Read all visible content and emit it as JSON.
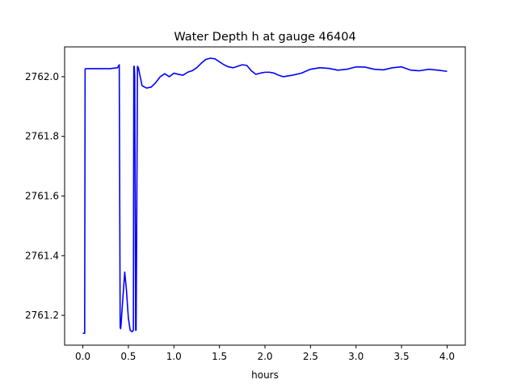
{
  "chart_data": {
    "type": "line",
    "title": "Water Depth h at gauge 46404",
    "xlabel": "hours",
    "ylabel": "",
    "xlim": [
      -0.2,
      4.2
    ],
    "ylim": [
      2761.1,
      2762.1
    ],
    "xticks": [
      0.0,
      0.5,
      1.0,
      1.5,
      2.0,
      2.5,
      3.0,
      3.5,
      4.0
    ],
    "xtick_labels": [
      "0.0",
      "0.5",
      "1.0",
      "1.5",
      "2.0",
      "2.5",
      "3.0",
      "3.5",
      "4.0"
    ],
    "yticks": [
      2761.2,
      2761.4,
      2761.6,
      2761.8,
      2762.0
    ],
    "ytick_labels": [
      "2761.2",
      "2761.4",
      "2761.6",
      "2761.8",
      "2762.0"
    ],
    "grid": false,
    "legend": "none",
    "series": [
      {
        "color": "#0000ff",
        "x": [
          0.0,
          0.02,
          0.025,
          0.03,
          0.1,
          0.2,
          0.3,
          0.38,
          0.4,
          0.41,
          0.415,
          0.42,
          0.44,
          0.46,
          0.48,
          0.5,
          0.52,
          0.54,
          0.555,
          0.56,
          0.565,
          0.57,
          0.58,
          0.585,
          0.59,
          0.6,
          0.61,
          0.63,
          0.65,
          0.68,
          0.7,
          0.75,
          0.8,
          0.85,
          0.9,
          0.95,
          1.0,
          1.05,
          1.1,
          1.15,
          1.2,
          1.25,
          1.3,
          1.35,
          1.4,
          1.45,
          1.5,
          1.55,
          1.6,
          1.65,
          1.7,
          1.75,
          1.8,
          1.85,
          1.9,
          1.95,
          2.0,
          2.05,
          2.1,
          2.15,
          2.2,
          2.3,
          2.4,
          2.5,
          2.6,
          2.7,
          2.8,
          2.9,
          3.0,
          3.1,
          3.2,
          3.3,
          3.4,
          3.5,
          3.6,
          3.7,
          3.8,
          3.9,
          4.0
        ],
        "y": [
          2761.14,
          2761.14,
          2762.025,
          2762.027,
          2762.027,
          2762.027,
          2762.027,
          2762.03,
          2762.04,
          2761.16,
          2761.155,
          2761.17,
          2761.26,
          2761.345,
          2761.28,
          2761.19,
          2761.15,
          2761.145,
          2761.15,
          2762.035,
          2762.035,
          2762.0,
          2761.15,
          2761.15,
          2761.4,
          2762.035,
          2762.03,
          2762.0,
          2761.97,
          2761.965,
          2761.962,
          2761.965,
          2761.98,
          2762.0,
          2762.01,
          2762.0,
          2762.012,
          2762.008,
          2762.005,
          2762.015,
          2762.02,
          2762.03,
          2762.045,
          2762.058,
          2762.062,
          2762.06,
          2762.05,
          2762.04,
          2762.033,
          2762.03,
          2762.035,
          2762.04,
          2762.038,
          2762.02,
          2762.008,
          2762.012,
          2762.015,
          2762.015,
          2762.012,
          2762.005,
          2762.0,
          2762.005,
          2762.012,
          2762.025,
          2762.03,
          2762.028,
          2762.022,
          2762.025,
          2762.033,
          2762.032,
          2762.025,
          2762.023,
          2762.03,
          2762.033,
          2762.022,
          2762.02,
          2762.025,
          2762.022,
          2762.018
        ]
      }
    ]
  }
}
